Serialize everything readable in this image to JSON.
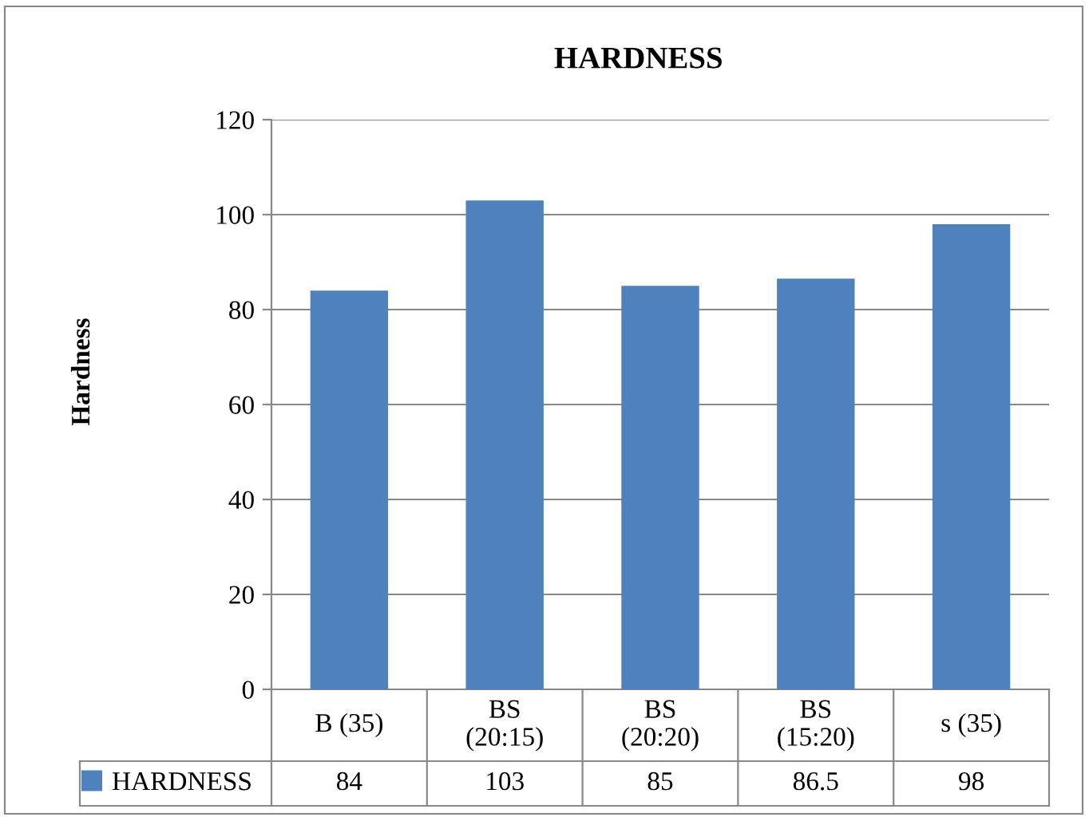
{
  "chart_data": {
    "type": "bar",
    "title": "HARDNESS",
    "ylabel": "Hardness",
    "categories": [
      "B (35)",
      "BS (20:15)",
      "BS (20:20)",
      "BS (15:20)",
      "s (35)"
    ],
    "series": [
      {
        "name": "HARDNESS",
        "color": "#4f81bd",
        "values": [
          84,
          103,
          85,
          86.5,
          98
        ]
      }
    ],
    "ylim": [
      0,
      120
    ],
    "yticks": [
      0,
      20,
      40,
      60,
      80,
      100,
      120
    ],
    "grid": "y",
    "data_labels": true,
    "legend": "bottom"
  }
}
